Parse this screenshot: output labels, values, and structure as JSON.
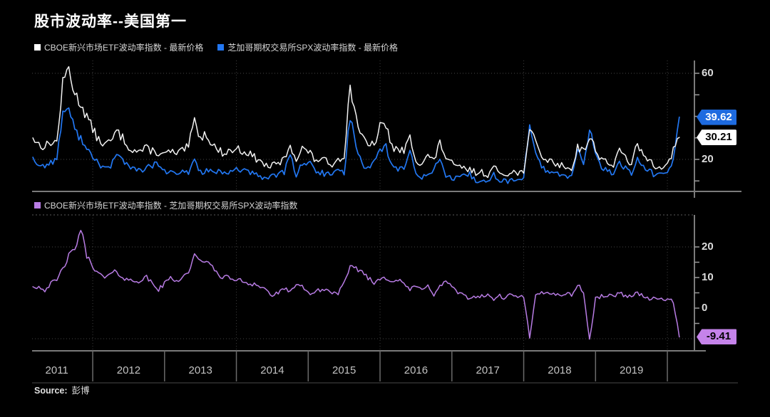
{
  "title": "股市波动率--美国第一",
  "source": {
    "label": "Source:",
    "value": "彭博"
  },
  "x_axis": {
    "years": [
      "2011",
      "2012",
      "2013",
      "2014",
      "2015",
      "2016",
      "2017",
      "2018",
      "2019"
    ]
  },
  "colors": {
    "background": "#000000",
    "white_line": "#f2f2f2",
    "blue_line": "#2277f2",
    "purple_line": "#b87ce4",
    "blue_badge_bg": "#1e6be0",
    "white_badge_bg": "#ffffff",
    "purple_badge_bg": "#c583ea",
    "grid": "#3d3d3d",
    "axis_solid": "#7a7a7a",
    "tick": "#9a9a9a"
  },
  "chart_data": [
    {
      "type": "line",
      "panel": "top",
      "x_unit": "month",
      "x_start": "2011-03",
      "x_end": "2020-03",
      "ylim": [
        5,
        68
      ],
      "yticks_labeled": [
        60,
        20
      ],
      "yticks_minor": [
        60,
        50,
        40,
        30,
        20,
        10
      ],
      "grid_values": [
        60,
        20
      ],
      "series": [
        {
          "name": "CBOE新兴市场ETF波动率指数 - 最新价格",
          "color": "#f2f2f2",
          "last_value": 30.21,
          "values": [
            30,
            27,
            26,
            28,
            28,
            55,
            63,
            50,
            46,
            40,
            34,
            29,
            27,
            28,
            33,
            30,
            26,
            24,
            24,
            25,
            24,
            23,
            22,
            24,
            22,
            24,
            26,
            38,
            30,
            32,
            27,
            24,
            23,
            24,
            25,
            24,
            23,
            21,
            19,
            17,
            17,
            18,
            20,
            27,
            20,
            25,
            24,
            20,
            20,
            19,
            18,
            20,
            22,
            54,
            40,
            30,
            26,
            27,
            35,
            36,
            26,
            24,
            24,
            30,
            20,
            18,
            22,
            19,
            28,
            21,
            18,
            16,
            16,
            15,
            14,
            14,
            13,
            16,
            14,
            13,
            15,
            13,
            15,
            33,
            28,
            22,
            19,
            19,
            17,
            17,
            15,
            26,
            24,
            30,
            25,
            20,
            19,
            17,
            24,
            21,
            18,
            27,
            21,
            20,
            17,
            17,
            17,
            24,
            30.21
          ]
        },
        {
          "name": "芝加哥期权交易所SPX波动率指数 - 最新价格",
          "color": "#2277f2",
          "last_value": 39.62,
          "values": [
            21,
            17,
            17,
            19,
            20,
            42,
            44,
            33,
            30,
            26,
            20,
            18,
            16,
            17,
            22,
            20,
            17,
            15,
            15,
            16,
            17,
            18,
            14,
            14,
            13,
            14,
            14,
            20,
            14,
            15,
            14,
            14,
            13,
            14,
            16,
            15,
            14,
            13,
            12,
            11,
            13,
            13,
            14,
            22,
            13,
            18,
            19,
            15,
            14,
            13,
            13,
            15,
            14,
            40,
            26,
            18,
            16,
            19,
            25,
            26,
            17,
            15,
            16,
            24,
            13,
            12,
            14,
            15,
            21,
            12,
            11,
            11,
            12,
            13,
            10,
            10,
            9,
            13,
            10,
            10,
            10,
            10,
            12,
            36,
            24,
            17,
            14,
            14,
            13,
            12,
            12,
            23,
            19,
            34,
            22,
            16,
            15,
            13,
            19,
            16,
            13,
            21,
            16,
            15,
            12,
            13,
            13,
            21,
            39.62
          ]
        }
      ],
      "badges": [
        {
          "text": "39.62",
          "value": 39.62,
          "bg": "#1e6be0",
          "fg": "#ffffff"
        },
        {
          "text": "30.21",
          "value": 30.21,
          "bg": "#ffffff",
          "fg": "#000000"
        }
      ]
    },
    {
      "type": "line",
      "panel": "bottom",
      "x_unit": "month",
      "x_start": "2011-03",
      "x_end": "2020-03",
      "ylim": [
        -12,
        28
      ],
      "yticks_labeled": [
        20,
        10,
        0
      ],
      "yticks_minor": [
        20,
        15,
        10,
        5,
        0,
        -5
      ],
      "grid_values": [
        20,
        -10
      ],
      "series": [
        {
          "name": "CBOE新兴市场ETF波动率指数 - 芝加哥期权交易所SPX波动率指数",
          "color": "#b87ce4",
          "last_value": -9.41,
          "values": [
            7,
            7,
            6,
            8,
            9,
            13,
            17,
            19,
            26,
            17,
            14,
            11,
            10,
            11,
            12,
            10,
            9,
            9,
            9,
            10,
            8,
            6,
            8,
            10,
            9,
            10,
            12,
            17,
            15,
            16,
            13,
            11,
            10,
            10,
            9,
            9,
            8,
            8,
            7,
            6,
            4,
            5,
            6,
            6,
            7,
            7,
            5,
            5,
            6,
            6,
            5,
            5,
            8,
            13,
            13,
            12,
            10,
            8,
            10,
            10,
            9,
            9,
            8,
            6,
            7,
            6,
            8,
            4,
            7,
            9,
            7,
            5,
            4,
            3,
            4,
            4,
            4,
            3,
            4,
            3,
            5,
            3,
            4,
            -10,
            4,
            5,
            5,
            5,
            4,
            5,
            4,
            8,
            5,
            -10.5,
            3,
            4,
            4,
            4,
            5,
            4,
            4,
            5,
            4,
            3,
            3,
            3,
            3,
            2,
            -9.41
          ]
        }
      ],
      "badges": [
        {
          "text": "-9.41",
          "value": -9.41,
          "bg": "#c583ea",
          "fg": "#000000"
        }
      ]
    }
  ]
}
